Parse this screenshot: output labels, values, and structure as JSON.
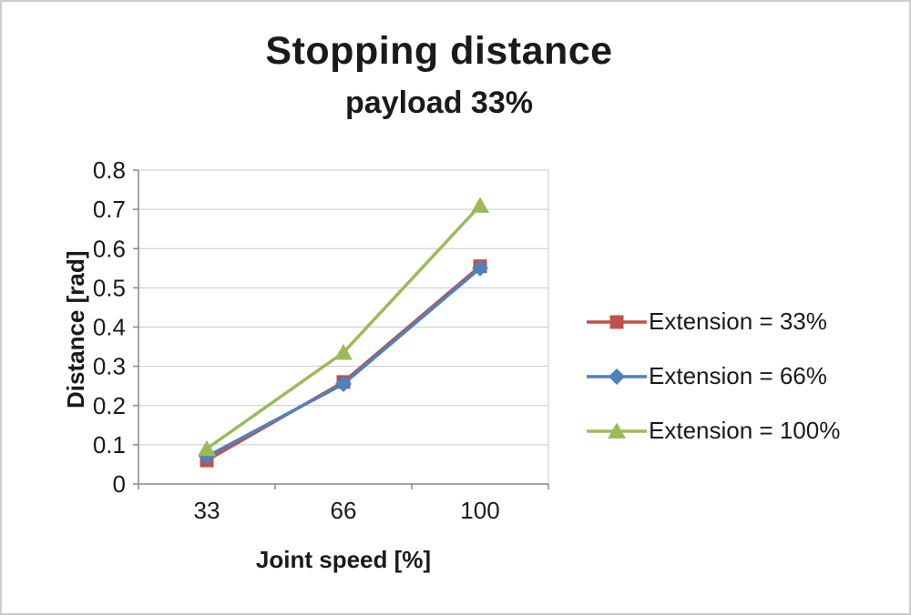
{
  "chart_data": {
    "type": "line",
    "title": "Stopping distance",
    "subtitle": "payload 33%",
    "xlabel": "Joint speed [%]",
    "ylabel": "Distance [rad]",
    "categories": [
      "33",
      "66",
      "100"
    ],
    "yticks": [
      "0",
      "0.1",
      "0.2",
      "0.3",
      "0.4",
      "0.5",
      "0.6",
      "0.7",
      "0.8"
    ],
    "ylim": [
      0,
      0.8
    ],
    "grid": true,
    "legend_position": "right",
    "series": [
      {
        "name": "Extension = 33%",
        "color": "#C0504D",
        "marker": "square",
        "values": [
          0.06,
          0.26,
          0.555
        ]
      },
      {
        "name": "Extension = 66%",
        "color": "#4F81BD",
        "marker": "diamond",
        "values": [
          0.07,
          0.255,
          0.55
        ]
      },
      {
        "name": "Extension = 100%",
        "color": "#9BBB59",
        "marker": "triangle",
        "values": [
          0.09,
          0.335,
          0.71
        ]
      }
    ]
  }
}
